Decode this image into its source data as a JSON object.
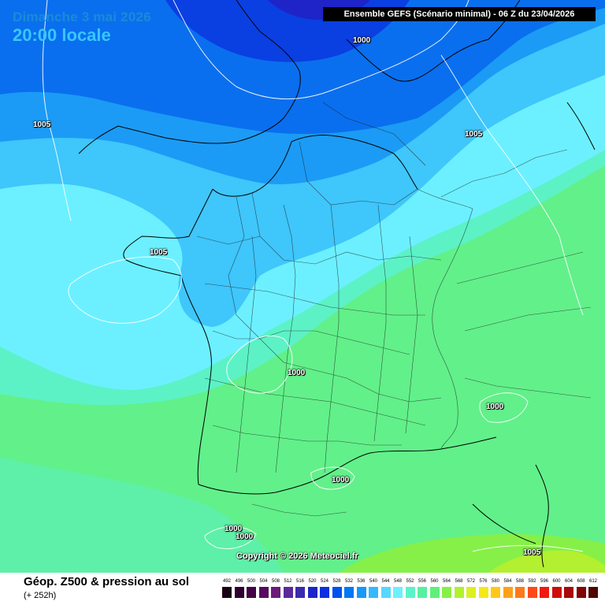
{
  "header": {
    "date": "Dimanche 3 mai 2026",
    "time": "20:00 locale",
    "run": "Ensemble GEFS  (Scénario minimal) - 06 Z du 23/04/2026"
  },
  "isobars": [
    {
      "id": "iso-1000-north",
      "label": "1000"
    },
    {
      "id": "iso-1005-nw",
      "label": "1005"
    },
    {
      "id": "iso-1005-ne",
      "label": "1005"
    },
    {
      "id": "iso-1005-brittany",
      "label": "1005"
    },
    {
      "id": "iso-1000-center",
      "label": "1000"
    },
    {
      "id": "iso-1000-alps",
      "label": "1000"
    },
    {
      "id": "iso-1000-pyrenees",
      "label": "1000"
    },
    {
      "id": "iso-1000-sw-a",
      "label": "1000"
    },
    {
      "id": "iso-1000-sw-b",
      "label": "1000"
    },
    {
      "id": "iso-1005-se",
      "label": "1005"
    }
  ],
  "copyright": "Copyright © 2026 Meteociel.fr",
  "legend": {
    "title": "Géop. Z500 & pression au sol",
    "subtitle": "(+ 252h)",
    "scale": [
      {
        "v": "492",
        "c": "#1a0015"
      },
      {
        "v": "496",
        "c": "#2e0030"
      },
      {
        "v": "500",
        "c": "#420045"
      },
      {
        "v": "504",
        "c": "#570a60"
      },
      {
        "v": "508",
        "c": "#6b1a7a"
      },
      {
        "v": "512",
        "c": "#5a2a9a"
      },
      {
        "v": "516",
        "c": "#3a2ab0"
      },
      {
        "v": "520",
        "c": "#1e24c8"
      },
      {
        "v": "524",
        "c": "#0a30e0"
      },
      {
        "v": "528",
        "c": "#0050f0"
      },
      {
        "v": "532",
        "c": "#0078f5"
      },
      {
        "v": "536",
        "c": "#1898f8"
      },
      {
        "v": "540",
        "c": "#35b8fc"
      },
      {
        "v": "544",
        "c": "#55d8ff"
      },
      {
        "v": "548",
        "c": "#6cf0ff"
      },
      {
        "v": "552",
        "c": "#5cf2c8"
      },
      {
        "v": "556",
        "c": "#55f0a0"
      },
      {
        "v": "560",
        "c": "#5ef07a"
      },
      {
        "v": "564",
        "c": "#86f048"
      },
      {
        "v": "568",
        "c": "#b2f030"
      },
      {
        "v": "572",
        "c": "#dcf020"
      },
      {
        "v": "576",
        "c": "#f5e818"
      },
      {
        "v": "580",
        "c": "#ffc818"
      },
      {
        "v": "584",
        "c": "#ffa018"
      },
      {
        "v": "588",
        "c": "#ff7a18"
      },
      {
        "v": "592",
        "c": "#ff4a18"
      },
      {
        "v": "596",
        "c": "#f01a10"
      },
      {
        "v": "600",
        "c": "#d00a0a"
      },
      {
        "v": "604",
        "c": "#a80808"
      },
      {
        "v": "608",
        "c": "#800505"
      },
      {
        "v": "612",
        "c": "#500303"
      }
    ]
  }
}
